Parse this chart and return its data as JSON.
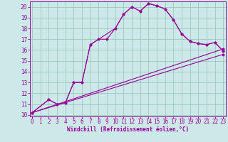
{
  "bg_color": "#cce8e8",
  "grid_color": "#99ccbb",
  "line_color": "#990099",
  "xlim": [
    -0.3,
    23.3
  ],
  "ylim": [
    9.85,
    20.5
  ],
  "xticks": [
    0,
    1,
    2,
    3,
    4,
    5,
    6,
    7,
    8,
    9,
    10,
    11,
    12,
    13,
    14,
    15,
    16,
    17,
    18,
    19,
    20,
    21,
    22,
    23
  ],
  "yticks": [
    10,
    11,
    12,
    13,
    14,
    15,
    16,
    17,
    18,
    19,
    20
  ],
  "xlabel": "Windchill (Refroidissement éolien,°C)",
  "curve1_x": [
    0,
    2,
    3,
    4,
    5,
    6,
    7,
    8,
    9,
    10,
    11,
    12,
    13,
    14,
    15,
    16,
    17,
    18,
    19,
    20,
    21,
    22,
    23
  ],
  "curve1_y": [
    10.2,
    11.4,
    11.0,
    11.1,
    13.0,
    13.0,
    16.5,
    17.0,
    17.0,
    18.0,
    19.3,
    20.0,
    19.6,
    20.3,
    20.1,
    19.8,
    18.8,
    17.5,
    16.8,
    16.6,
    16.5,
    16.7,
    15.9
  ],
  "curve2_x": [
    0,
    2,
    3,
    4,
    5,
    6,
    7,
    10,
    11,
    12,
    13,
    14,
    15,
    16,
    17,
    18,
    19,
    20,
    21,
    22,
    23
  ],
  "curve2_y": [
    10.2,
    11.4,
    11.0,
    11.1,
    13.0,
    13.0,
    16.5,
    18.0,
    19.3,
    20.0,
    19.6,
    20.3,
    20.1,
    19.8,
    18.8,
    17.5,
    16.8,
    16.6,
    16.5,
    16.7,
    15.9
  ],
  "line3_x": [
    0,
    23
  ],
  "line3_y": [
    10.2,
    15.6
  ],
  "line4_x": [
    0,
    23
  ],
  "line4_y": [
    10.2,
    16.1
  ],
  "lw": 0.8,
  "ms": 2.5,
  "tick_fontsize": 5.5,
  "xlabel_fontsize": 5.5
}
